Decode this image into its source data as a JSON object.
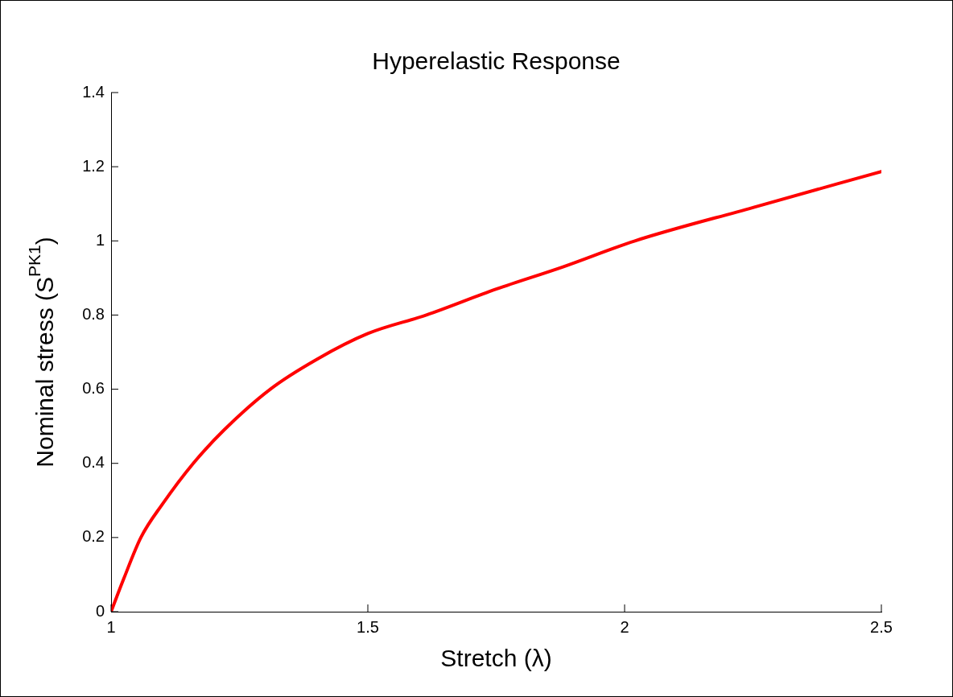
{
  "chart_data": {
    "type": "line",
    "title": "Hyperelastic Response",
    "xlabel": "Stretch (λ)",
    "ylabel": "Nominal stress (S$^{PK1}$)",
    "x": [
      1,
      1.025,
      1.058,
      1.1,
      1.16,
      1.22,
      1.31,
      1.4,
      1.5,
      1.614,
      1.75,
      1.88,
      2.02,
      2.25,
      2.5
    ],
    "series": [
      {
        "color": "#ff0000",
        "values": [
          0,
          0.09,
          0.2,
          0.29,
          0.4,
          0.49,
          0.6,
          0.68,
          0.75,
          0.8,
          0.87,
          0.93,
          1.0,
          1.09,
          1.187
        ]
      }
    ],
    "xlim": [
      1,
      2.5
    ],
    "xticks": [
      1,
      1.5,
      2,
      2.5
    ],
    "ylim": [
      0,
      1.4
    ],
    "yticks": [
      0,
      0.2,
      0.4,
      0.6,
      0.8,
      1,
      1.2,
      1.4
    ],
    "grid": false,
    "legend": false,
    "marker": "none",
    "line_style": "solid"
  }
}
